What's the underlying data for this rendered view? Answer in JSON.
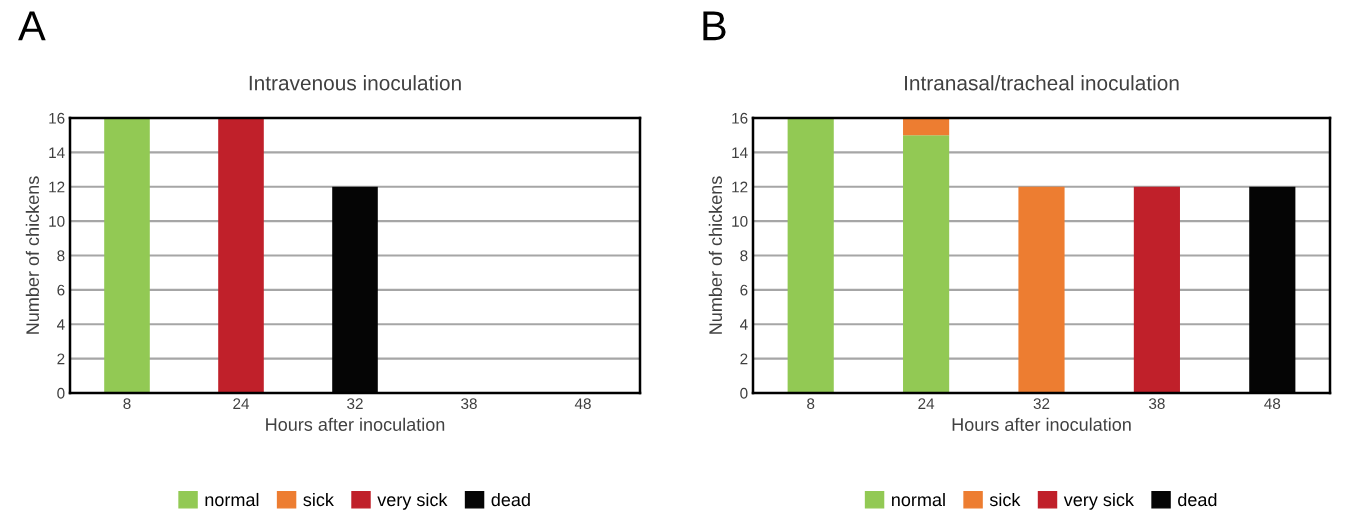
{
  "chart_data": [
    {
      "type": "bar",
      "stacked": true,
      "title": "Intravenous inoculation",
      "xlabel": "Hours after inoculation",
      "ylabel": "Number of chickens",
      "annotations": [
        "A"
      ],
      "categories": [
        "8",
        "24",
        "32",
        "38",
        "48"
      ],
      "series": [
        {
          "name": "normal",
          "color": "#92c954",
          "values": [
            16,
            0,
            0,
            0,
            0
          ]
        },
        {
          "name": "sick",
          "color": "#ed7d31",
          "values": [
            0,
            0,
            0,
            0,
            0
          ]
        },
        {
          "name": "very sick",
          "color": "#c0202a",
          "values": [
            0,
            16,
            0,
            0,
            0
          ]
        },
        {
          "name": "dead",
          "color": "#050505",
          "values": [
            0,
            0,
            12,
            0,
            0
          ]
        }
      ],
      "ylim": [
        0,
        16
      ],
      "yticks": [
        0,
        2,
        4,
        6,
        8,
        10,
        12,
        14,
        16
      ],
      "grid": "y",
      "legend": "bottom"
    },
    {
      "type": "bar",
      "stacked": true,
      "title": "Intranasal/tracheal inoculation",
      "xlabel": "Hours after inoculation",
      "ylabel": "Number of chickens",
      "annotations": [
        "B"
      ],
      "categories": [
        "8",
        "24",
        "32",
        "38",
        "48"
      ],
      "series": [
        {
          "name": "normal",
          "color": "#92c954",
          "values": [
            16,
            15,
            0,
            0,
            0
          ]
        },
        {
          "name": "sick",
          "color": "#ed7d31",
          "values": [
            0,
            1,
            12,
            0,
            0
          ]
        },
        {
          "name": "very sick",
          "color": "#c0202a",
          "values": [
            0,
            0,
            0,
            12,
            0
          ]
        },
        {
          "name": "dead",
          "color": "#050505",
          "values": [
            0,
            0,
            0,
            0,
            12
          ]
        }
      ],
      "ylim": [
        0,
        16
      ],
      "yticks": [
        0,
        2,
        4,
        6,
        8,
        10,
        12,
        14,
        16
      ],
      "grid": "y",
      "legend": "bottom"
    }
  ]
}
